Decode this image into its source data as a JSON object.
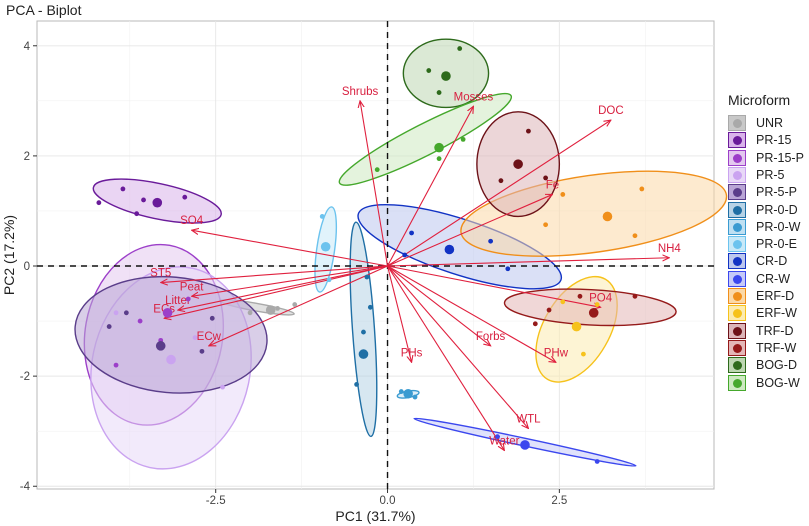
{
  "chart_data": {
    "type": "scatter",
    "title": "PCA - Biplot",
    "xlabel": "PC1 (31.7%)",
    "ylabel": "PC2 (17.2%)",
    "xlim": [
      -5.1,
      4.75
    ],
    "ylim": [
      -4.05,
      4.45
    ],
    "x_ticks": [
      -2.5,
      0.0,
      2.5
    ],
    "x_tick_labels": [
      "-2.5",
      "0.0",
      "2.5"
    ],
    "y_ticks": [
      -4,
      -2,
      0,
      2,
      4
    ],
    "y_tick_labels": [
      "-4",
      "-2",
      "0",
      "2",
      "4"
    ],
    "grid": true,
    "reference_lines": {
      "x": 0,
      "y": 0,
      "style": "dashed"
    },
    "legend": {
      "title": "Microform",
      "position": "right"
    },
    "groups": [
      {
        "name": "UNR",
        "color": "#a9a9a9",
        "fill": "#c8c8c8",
        "centroid": [
          -1.7,
          -0.8
        ],
        "ellipse": {
          "cx": -1.9,
          "cy": -0.75,
          "rx": 0.55,
          "ry": 0.07,
          "angle": -10
        },
        "points": [
          [
            -2.0,
            -0.85
          ],
          [
            -1.6,
            -0.77
          ],
          [
            -1.35,
            -0.7
          ]
        ]
      },
      {
        "name": "PR-15",
        "color": "#6a1b9a",
        "fill": "#d9b3ea",
        "centroid": [
          -3.35,
          1.15
        ],
        "ellipse": {
          "cx": -3.35,
          "cy": 1.18,
          "rx": 0.95,
          "ry": 0.32,
          "angle": -12
        },
        "points": [
          [
            -3.85,
            1.4
          ],
          [
            -3.55,
            1.2
          ],
          [
            -2.95,
            1.25
          ],
          [
            -4.2,
            1.15
          ],
          [
            -3.65,
            0.95
          ]
        ]
      },
      {
        "name": "PR-15-P",
        "color": "#9c3fc9",
        "fill": "#e3c8ef",
        "centroid": [
          -3.2,
          -0.85
        ],
        "ellipse": {
          "cx": -3.4,
          "cy": -1.25,
          "rx": 1.0,
          "ry": 1.65,
          "angle": -10
        },
        "points": [
          [
            -3.6,
            -1.0
          ],
          [
            -3.3,
            -1.35
          ],
          [
            -3.95,
            -1.8
          ],
          [
            -2.9,
            -0.6
          ]
        ]
      },
      {
        "name": "PR-5",
        "color": "#caa3f0",
        "fill": "#e8d8f7",
        "centroid": [
          -3.15,
          -1.7
        ],
        "ellipse": {
          "cx": -3.15,
          "cy": -1.85,
          "rx": 1.15,
          "ry": 1.85,
          "angle": -12
        },
        "points": [
          [
            -3.15,
            -1.7
          ],
          [
            -3.95,
            -0.85
          ],
          [
            -2.4,
            -2.2
          ],
          [
            -2.8,
            -1.3
          ]
        ]
      },
      {
        "name": "PR-5-P",
        "color": "#5a3d8a",
        "fill": "#b9a5d6",
        "centroid": [
          -3.3,
          -1.45
        ],
        "ellipse": {
          "cx": -3.15,
          "cy": -1.25,
          "rx": 1.4,
          "ry": 1.05,
          "angle": -5
        },
        "points": [
          [
            -3.3,
            -1.45
          ],
          [
            -4.05,
            -1.1
          ],
          [
            -2.7,
            -1.55
          ],
          [
            -3.8,
            -0.85
          ],
          [
            -2.55,
            -0.95
          ]
        ]
      },
      {
        "name": "PR-0-D",
        "color": "#1f6fa5",
        "fill": "#b7d3e6",
        "centroid": [
          -0.35,
          -1.6
        ],
        "ellipse": {
          "cx": -0.35,
          "cy": -1.15,
          "rx": 0.16,
          "ry": 1.95,
          "angle": 4
        },
        "points": [
          [
            -0.45,
            -2.15
          ],
          [
            -0.25,
            -0.75
          ],
          [
            -0.35,
            -1.2
          ],
          [
            -0.3,
            -0.2
          ]
        ]
      },
      {
        "name": "PR-0-W",
        "color": "#3a9bd1",
        "fill": "#bfe0f2",
        "centroid": [
          0.3,
          -2.32
        ],
        "ellipse": {
          "cx": 0.3,
          "cy": -2.33,
          "rx": 0.16,
          "ry": 0.06,
          "angle": 10
        },
        "points": [
          [
            0.2,
            -2.28
          ],
          [
            0.4,
            -2.38
          ]
        ]
      },
      {
        "name": "PR-0-E",
        "color": "#6cc3ee",
        "fill": "#c8e9f8",
        "centroid": [
          -0.9,
          0.35
        ],
        "ellipse": {
          "cx": -0.9,
          "cy": 0.3,
          "rx": 0.13,
          "ry": 0.78,
          "angle": -8
        },
        "points": [
          [
            -0.95,
            0.9
          ],
          [
            -0.85,
            -0.25
          ]
        ]
      },
      {
        "name": "CR-D",
        "color": "#1233c4",
        "fill": "#bcc7ee",
        "centroid": [
          0.9,
          0.3
        ],
        "ellipse": {
          "cx": 1.05,
          "cy": 0.35,
          "rx": 1.55,
          "ry": 0.5,
          "angle": -18
        },
        "points": [
          [
            0.35,
            0.6
          ],
          [
            1.5,
            0.45
          ],
          [
            1.75,
            -0.05
          ],
          [
            0.25,
            0.2
          ]
        ]
      },
      {
        "name": "CR-W",
        "color": "#3b47ee",
        "fill": "#c6caf8",
        "centroid": [
          2.0,
          -3.25
        ],
        "ellipse": {
          "cx": 2.0,
          "cy": -3.2,
          "rx": 1.65,
          "ry": 0.07,
          "angle": -12
        },
        "points": [
          [
            1.6,
            -3.1
          ],
          [
            3.05,
            -3.55
          ]
        ]
      },
      {
        "name": "ERF-D",
        "color": "#f08f1a",
        "fill": "#fbd9a8",
        "centroid": [
          3.2,
          0.9
        ],
        "ellipse": {
          "cx": 3.0,
          "cy": 0.95,
          "rx": 1.95,
          "ry": 0.7,
          "angle": 8
        },
        "points": [
          [
            2.3,
            0.75
          ],
          [
            3.7,
            1.4
          ],
          [
            3.6,
            0.55
          ],
          [
            2.55,
            1.3
          ]
        ]
      },
      {
        "name": "ERF-W",
        "color": "#f6c21c",
        "fill": "#fcebb0",
        "centroid": [
          2.75,
          -1.1
        ],
        "ellipse": {
          "cx": 2.75,
          "cy": -1.15,
          "rx": 0.48,
          "ry": 1.05,
          "angle": -30
        },
        "points": [
          [
            2.55,
            -0.65
          ],
          [
            3.05,
            -0.7
          ],
          [
            2.85,
            -1.6
          ]
        ]
      },
      {
        "name": "TRF-D",
        "color": "#6d1218",
        "fill": "#dcb5b8",
        "centroid": [
          1.9,
          1.85
        ],
        "ellipse": {
          "cx": 1.9,
          "cy": 1.85,
          "rx": 0.6,
          "ry": 0.95,
          "angle": 0
        },
        "points": [
          [
            2.05,
            2.45
          ],
          [
            2.3,
            1.6
          ],
          [
            1.65,
            1.55
          ]
        ]
      },
      {
        "name": "TRF-W",
        "color": "#951a1a",
        "fill": "#e3b7b7",
        "centroid": [
          3.0,
          -0.85
        ],
        "ellipse": {
          "cx": 2.95,
          "cy": -0.75,
          "rx": 1.25,
          "ry": 0.32,
          "angle": -3
        },
        "points": [
          [
            2.35,
            -0.8
          ],
          [
            2.8,
            -0.55
          ],
          [
            3.6,
            -0.55
          ],
          [
            2.15,
            -1.05
          ]
        ]
      },
      {
        "name": "BOG-D",
        "color": "#2d6a1b",
        "fill": "#bdd7b2",
        "centroid": [
          0.85,
          3.45
        ],
        "ellipse": {
          "cx": 0.85,
          "cy": 3.5,
          "rx": 0.62,
          "ry": 0.62,
          "angle": 0
        },
        "points": [
          [
            0.6,
            3.55
          ],
          [
            1.05,
            3.95
          ],
          [
            0.75,
            3.15
          ]
        ]
      },
      {
        "name": "BOG-W",
        "color": "#45a82c",
        "fill": "#cde9c1",
        "centroid": [
          0.75,
          2.15
        ],
        "ellipse": {
          "cx": 0.55,
          "cy": 2.3,
          "rx": 1.4,
          "ry": 0.28,
          "angle": 27
        },
        "points": [
          [
            -0.15,
            1.75
          ],
          [
            1.1,
            2.3
          ],
          [
            0.75,
            1.95
          ]
        ]
      }
    ],
    "loadings": [
      {
        "name": "Shrubs",
        "x": -0.4,
        "y": 3.0
      },
      {
        "name": "Mosses",
        "x": 1.25,
        "y": 2.9
      },
      {
        "name": "DOC",
        "x": 3.25,
        "y": 2.65
      },
      {
        "name": "Fe",
        "x": 2.4,
        "y": 1.3
      },
      {
        "name": "NH4",
        "x": 4.1,
        "y": 0.15
      },
      {
        "name": "PO4",
        "x": 3.1,
        "y": -0.75
      },
      {
        "name": "PHw",
        "x": 2.45,
        "y": -1.75
      },
      {
        "name": "Forbs",
        "x": 1.5,
        "y": -1.45
      },
      {
        "name": "PHs",
        "x": 0.35,
        "y": -1.75
      },
      {
        "name": "WTL",
        "x": 2.05,
        "y": -2.95
      },
      {
        "name": "Water",
        "x": 1.7,
        "y": -3.35
      },
      {
        "name": "SO4",
        "x": -2.85,
        "y": 0.65
      },
      {
        "name": "ST5",
        "x": -3.3,
        "y": -0.3
      },
      {
        "name": "Peat",
        "x": -2.85,
        "y": -0.55
      },
      {
        "name": "Litter",
        "x": -3.05,
        "y": -0.8
      },
      {
        "name": "ECs",
        "x": -3.25,
        "y": -0.95
      },
      {
        "name": "ECw",
        "x": -2.6,
        "y": -1.45
      }
    ]
  }
}
